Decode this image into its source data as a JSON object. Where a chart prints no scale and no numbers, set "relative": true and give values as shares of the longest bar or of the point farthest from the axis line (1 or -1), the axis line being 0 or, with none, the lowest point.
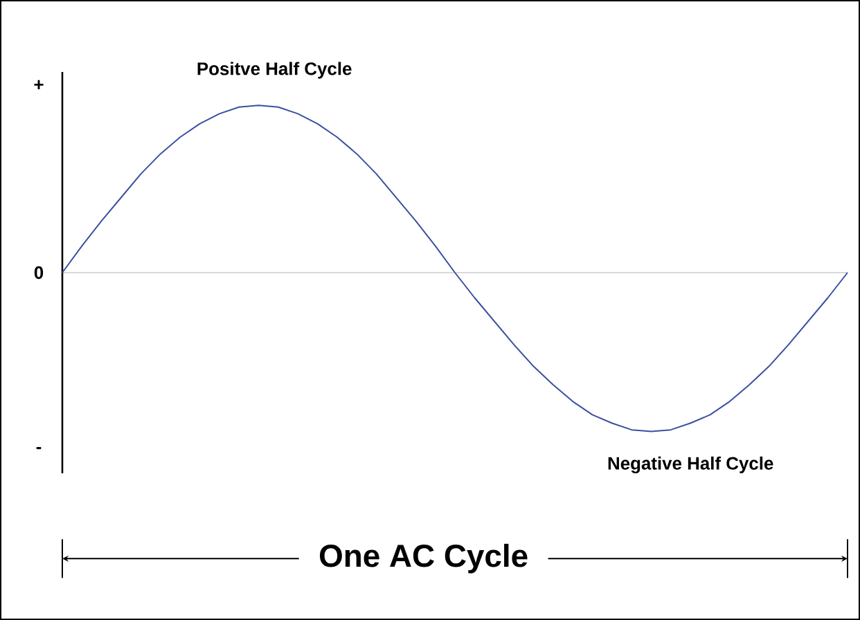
{
  "chart_data": {
    "type": "line",
    "relative": true,
    "color": "#3a4fa0",
    "marker": "none",
    "line_style": "solid",
    "categories": [
      null,
      null,
      null,
      null,
      null,
      null,
      null,
      null,
      null,
      null,
      null,
      null,
      null,
      null,
      null,
      null,
      null,
      null,
      null,
      null,
      null,
      null,
      null,
      null,
      null,
      null,
      null,
      null,
      null,
      null,
      null,
      null,
      null,
      null,
      null,
      null,
      null,
      null,
      null,
      null,
      null
    ],
    "values": [
      0,
      0.16,
      0.31,
      0.45,
      0.59,
      0.71,
      0.81,
      0.89,
      0.95,
      0.99,
      1,
      0.99,
      0.95,
      0.89,
      0.81,
      0.71,
      0.59,
      0.45,
      0.31,
      0.16,
      0,
      -0.15,
      -0.29,
      -0.43,
      -0.56,
      -0.67,
      -0.77,
      -0.85,
      -0.9,
      -0.94,
      -0.95,
      -0.94,
      -0.9,
      -0.85,
      -0.77,
      -0.67,
      -0.56,
      -0.43,
      -0.29,
      -0.15,
      0
    ],
    "annotations": [
      "+",
      "0",
      "-",
      "Positve Half Cycle",
      "Negative Half Cycle",
      "One AC Cycle"
    ]
  }
}
